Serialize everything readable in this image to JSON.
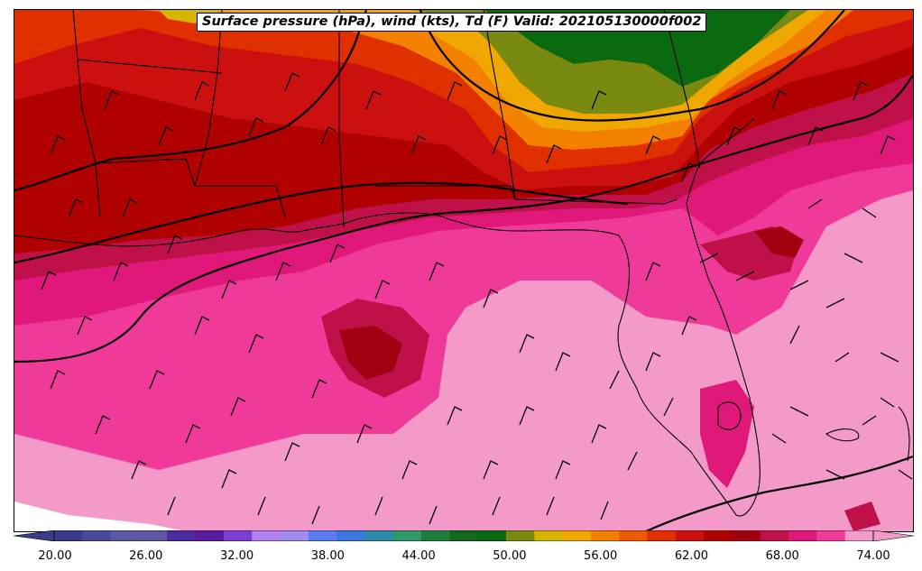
{
  "title": "Surface pressure (hPa), wind (kts), Td (F) Valid: 202105130000f002",
  "colorbar": {
    "tick_labels": [
      "20.00",
      "26.00",
      "32.00",
      "38.00",
      "44.00",
      "50.00",
      "56.00",
      "62.00",
      "68.00",
      "74.00"
    ],
    "colors": [
      "#3b3b8c",
      "#4a4a9c",
      "#5a5aa8",
      "#5e55a6",
      "#4b2a9e",
      "#5a1aa0",
      "#7a3ed0",
      "#b07ff0",
      "#a08cf0",
      "#5a7cf0",
      "#3a78e0",
      "#2e8aa8",
      "#2e9a6a",
      "#1e7e3c",
      "#116a1c",
      "#0b6a10",
      "#7a8a10",
      "#d6b400",
      "#f0a800",
      "#f48000",
      "#f05a00",
      "#e03000",
      "#cc1010",
      "#b00000",
      "#a00010",
      "#c0104a",
      "#e0187a",
      "#f03a9a",
      "#f39ac8"
    ],
    "extend": "both"
  },
  "map": {
    "region": "Gulf of Mexico and southeastern United States",
    "layers": [
      "dewpoint-fill",
      "isobars",
      "state-borders",
      "coastlines",
      "wind-barbs"
    ]
  }
}
